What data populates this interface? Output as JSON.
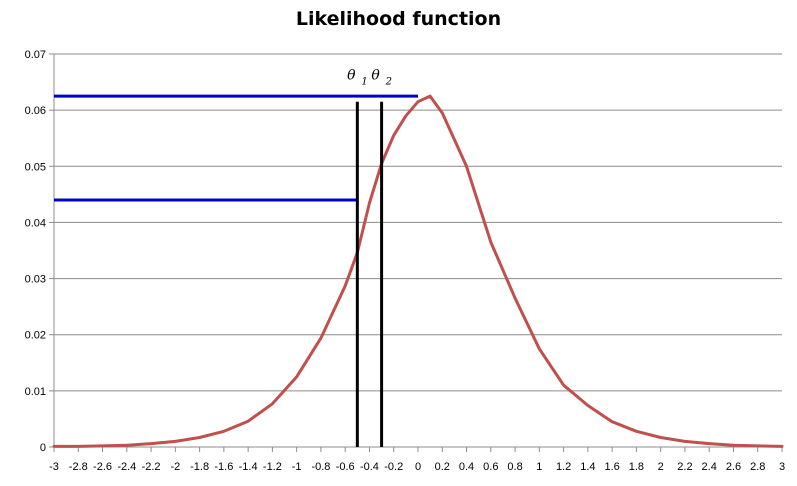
{
  "chart_data": {
    "type": "line",
    "title": "Likelihood function",
    "xlabel": "",
    "ylabel": "",
    "xlim": [
      -3,
      3
    ],
    "ylim": [
      0,
      0.07
    ],
    "grid": true,
    "legend": "none",
    "x_ticks": [
      "-3",
      "-2.8",
      "-2.6",
      "-2.4",
      "-2.2",
      "-2",
      "-1.8",
      "-1.6",
      "-1.4",
      "-1.2",
      "-1",
      "-0.8",
      "-0.6",
      "-0.4",
      "-0.2",
      "0",
      "0.2",
      "0.4",
      "0.6",
      "0.8",
      "1",
      "1.2",
      "1.4",
      "1.6",
      "1.8",
      "2",
      "2.2",
      "2.4",
      "2.6",
      "2.8",
      "3"
    ],
    "y_ticks": [
      "0",
      "0.01",
      "0.02",
      "0.03",
      "0.04",
      "0.05",
      "0.06",
      "0.07"
    ],
    "series": [
      {
        "color": "#c0504d",
        "x": [
          -3,
          -2.8,
          -2.6,
          -2.4,
          -2.2,
          -2,
          -1.8,
          -1.6,
          -1.4,
          -1.2,
          -1,
          -0.8,
          -0.6,
          -0.5,
          -0.4,
          -0.3,
          -0.2,
          -0.1,
          0,
          0.1,
          0.2,
          0.4,
          0.6,
          0.8,
          1,
          1.2,
          1.4,
          1.6,
          1.8,
          2,
          2.2,
          2.4,
          2.6,
          2.8,
          3
        ],
        "y": [
          0.0001,
          0.0001,
          0.0002,
          0.0003,
          0.0006,
          0.001,
          0.0017,
          0.0028,
          0.0046,
          0.0077,
          0.0125,
          0.0194,
          0.0287,
          0.0346,
          0.0435,
          0.0505,
          0.0555,
          0.059,
          0.0615,
          0.0625,
          0.0595,
          0.05,
          0.0365,
          0.0265,
          0.0175,
          0.011,
          0.0074,
          0.0045,
          0.0028,
          0.0017,
          0.001,
          0.0006,
          0.0003,
          0.0002,
          0.0001
        ]
      }
    ],
    "annotations": {
      "horizontal_lines": [
        {
          "y": 0.0625,
          "x_from": -3,
          "x_to": 0,
          "color": "#0000cc"
        },
        {
          "y": 0.044,
          "x_from": -3,
          "x_to": -0.5,
          "color": "#0000cc"
        }
      ],
      "vertical_lines": [
        {
          "x": -0.5,
          "y_to": 0.0615,
          "label": "θ",
          "sub": "1",
          "color": "#000000"
        },
        {
          "x": -0.3,
          "y_to": 0.0615,
          "label": "θ",
          "sub": "2",
          "color": "#000000"
        }
      ]
    }
  }
}
